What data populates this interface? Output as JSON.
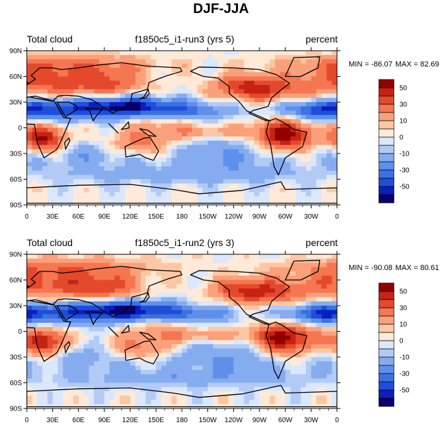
{
  "title": "DJF-JJA",
  "colors": {
    "ocean_base": "#d6e4f6",
    "coast": "#000000",
    "levels": [
      "#08006e",
      "#0a1fbf",
      "#1e4fd8",
      "#3c71e3",
      "#5e8feb",
      "#86acf0",
      "#b2cbf6",
      "#dbe7fa",
      "#ffe9d8",
      "#fdc7a4",
      "#fba07a",
      "#f57650",
      "#e5492c",
      "#c62314",
      "#940000"
    ]
  },
  "colorbar": {
    "labels": [
      "50",
      "30",
      "10",
      "0",
      "-10",
      "-30",
      "-50"
    ]
  },
  "chart_data": [
    {
      "type": "heatmap",
      "subplot": "top",
      "left_label": "Total cloud",
      "center_label": "f1850c5_i1-run3 (yrs 5)",
      "right_label": "percent",
      "min_label": "MIN = -86.07",
      "max_label": "MAX =  82.69",
      "min": -86.07,
      "max": 82.69,
      "units": "percent",
      "x_ticks": [
        "0",
        "30E",
        "60E",
        "90E",
        "120E",
        "150E",
        "180",
        "150W",
        "120W",
        "90W",
        "60W",
        "30W",
        "0"
      ],
      "y_ticks": [
        "90N",
        "60N",
        "30N",
        "0",
        "30S",
        "60S",
        "90S"
      ],
      "xlim": [
        0,
        360
      ],
      "ylim": [
        -90,
        90
      ],
      "contour_levels": [
        -60,
        -50,
        -40,
        -30,
        -20,
        -10,
        -5,
        0,
        5,
        10,
        20,
        30,
        40,
        50,
        60
      ]
    },
    {
      "type": "heatmap",
      "subplot": "bottom",
      "left_label": "Total cloud",
      "center_label": "f1850c5_i1-run2 (yrs 3)",
      "right_label": "percent",
      "min_label": "MIN = -90.08",
      "max_label": "MAX =  80.61",
      "min": -90.08,
      "max": 80.61,
      "units": "percent",
      "x_ticks": [
        "0",
        "30E",
        "60E",
        "90E",
        "120E",
        "150E",
        "180",
        "150W",
        "120W",
        "90W",
        "60W",
        "30W",
        "0"
      ],
      "y_ticks": [
        "90N",
        "60N",
        "30N",
        "0",
        "30S",
        "60S",
        "90S"
      ],
      "xlim": [
        0,
        360
      ],
      "ylim": [
        -90,
        90
      ],
      "contour_levels": [
        -60,
        -50,
        -40,
        -30,
        -20,
        -10,
        -5,
        0,
        5,
        10,
        20,
        30,
        40,
        50,
        60
      ]
    }
  ]
}
